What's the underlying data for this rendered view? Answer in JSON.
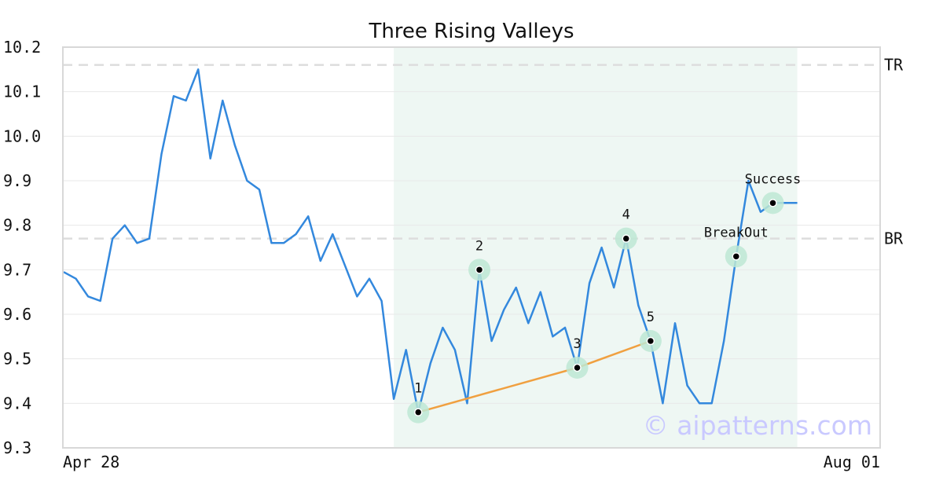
{
  "chart_data": {
    "type": "line",
    "title": "Three Rising Valleys",
    "ylim": [
      9.3,
      10.2
    ],
    "y_ticks": [
      "9.3",
      "9.4",
      "9.5",
      "9.6",
      "9.7",
      "9.8",
      "9.9",
      "10.0",
      "10.1",
      "10.2"
    ],
    "x_tick_labels": [
      {
        "index": 0,
        "label": "Apr 28"
      },
      {
        "index": 67,
        "label": "Aug 01"
      }
    ],
    "grid": "horizontal",
    "colors": {
      "price_line": "#3388dd",
      "trend_line": "#f0a040",
      "pattern_region": "#eef7f3",
      "marker_halo": "#bde8d4",
      "marker_dot": "#000000",
      "level_line": "#dddddd",
      "frame": "#d8d8d8"
    },
    "series": [
      {
        "values": [
          9.695,
          9.68,
          9.64,
          9.63,
          9.77,
          9.8,
          9.76,
          9.77,
          9.96,
          10.09,
          10.08,
          10.15,
          9.95,
          10.08,
          9.98,
          9.9,
          9.88,
          9.76,
          9.76,
          9.78,
          9.82,
          9.72,
          9.78,
          9.71,
          9.64,
          9.68,
          9.63,
          9.41,
          9.52,
          9.38,
          9.49,
          9.57,
          9.52,
          9.4,
          9.7,
          9.54,
          9.61,
          9.66,
          9.58,
          9.65,
          9.55,
          9.57,
          9.48,
          9.67,
          9.75,
          9.66,
          9.77,
          9.62,
          9.54,
          9.4,
          9.58,
          9.44,
          9.4,
          9.4,
          9.54,
          9.73,
          9.9,
          9.83,
          9.85,
          9.85,
          9.85
        ]
      }
    ],
    "pattern_region": {
      "start_index": 27,
      "end_index": 60
    },
    "levels": [
      {
        "label": "TR",
        "value": 10.16
      },
      {
        "label": "BR",
        "value": 9.77
      }
    ],
    "trend_line": [
      {
        "index": 29,
        "value": 9.38
      },
      {
        "index": 42,
        "value": 9.48
      },
      {
        "index": 48,
        "value": 9.54
      }
    ],
    "points": [
      {
        "label": "1",
        "index": 29,
        "value": 9.38
      },
      {
        "label": "2",
        "index": 34,
        "value": 9.7
      },
      {
        "label": "3",
        "index": 42,
        "value": 9.48
      },
      {
        "label": "4",
        "index": 46,
        "value": 9.77
      },
      {
        "label": "5",
        "index": 48,
        "value": 9.54
      },
      {
        "label": "BreakOut",
        "index": 55,
        "value": 9.73
      },
      {
        "label": "Success",
        "index": 58,
        "value": 9.85
      }
    ],
    "watermark": "© aipatterns.com"
  }
}
